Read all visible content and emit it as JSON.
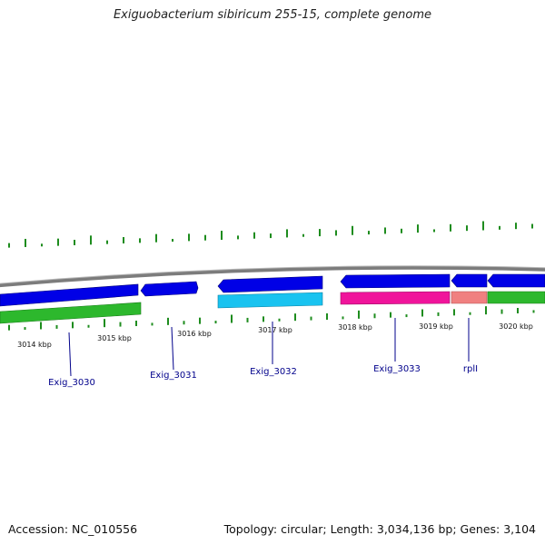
{
  "title": "Exiguobacterium sibiricum 255-15, complete genome",
  "footer": {
    "accession": "Accession: NC_010556",
    "summary": "Topology: circular; Length: 3,034,136 bp; Genes: 3,104"
  },
  "colors": {
    "backbone": "#808080",
    "cds_dark_blue": "#0000e6",
    "cds_light_blue": "#19c3f0",
    "cds_magenta": "#f0149b",
    "cds_salmon": "#f08080",
    "cds_green": "#2db82d",
    "gc_ticks": "#1e8c1e",
    "gene_label": "#00008b"
  },
  "scale_labels": [
    "3014 kbp",
    "3015 kbp",
    "3016 kbp",
    "3017 kbp",
    "3018 kbp",
    "3019 kbp",
    "3020 kbp"
  ],
  "gene_labels": [
    "Exig_3030",
    "Exig_3031",
    "Exig_3032",
    "Exig_3033",
    "rplI"
  ]
}
